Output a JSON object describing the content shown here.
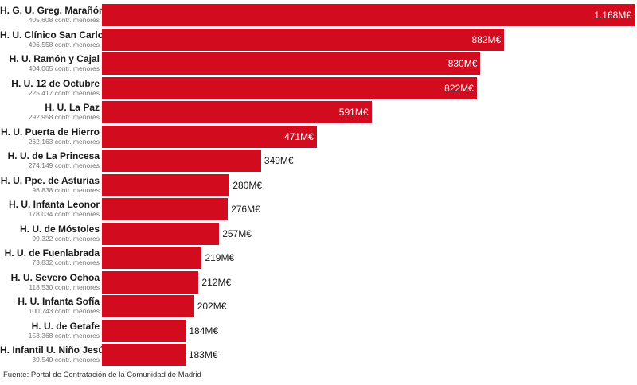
{
  "chart_data": {
    "type": "bar",
    "orientation": "horizontal",
    "unit": "M€",
    "categories": [
      "H. G. U. Greg. Marañón",
      "H. U. Clínico San Carlos",
      "H. U. Ramón y Cajal",
      "H. U. 12 de Octubre",
      "H. U. La Paz",
      "H. U. Puerta de Hierro",
      "H. U. de La Princesa",
      "H. U. Ppe. de Asturias",
      "H. U. Infanta Leonor",
      "H. U. de Móstoles",
      "H. U. de Fuenlabrada",
      "H. U. Severo Ochoa",
      "H. U. Infanta Sofía",
      "H. U. de Getafe",
      "H. Infantil U. Niño Jesús"
    ],
    "values": [
      1168,
      882,
      830,
      822,
      591,
      471,
      349,
      280,
      276,
      257,
      219,
      212,
      202,
      184,
      183
    ],
    "value_labels": [
      "1.168M€",
      "882M€",
      "830M€",
      "822M€",
      "591M€",
      "471M€",
      "349M€",
      "280M€",
      "276M€",
      "257M€",
      "219M€",
      "212M€",
      "202M€",
      "184M€",
      "183M€"
    ],
    "sublabels": [
      "405.608 contr. menores",
      "496.558 contr. menores",
      "404.065 contr. menores",
      "225.417 contr. menores",
      "292.958 contr. menores",
      "262.163 contr. menores",
      "274.149 contr. menores",
      "98.838 contr. menores",
      "178.034 contr. menores",
      "99.322 contr. menores",
      "73.832 contr. menores",
      "118.530 contr. menores",
      "100.743 contr. menores",
      "153.368 contr. menores",
      "39.540 contr. menores"
    ],
    "bar_color": "#d30b1e",
    "xlim": [
      0,
      1168
    ],
    "grid": false,
    "source": "Fuente: Portal de Contratación de la Comunidad de Madrid"
  }
}
